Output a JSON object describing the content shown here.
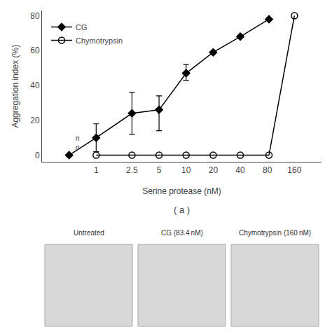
{
  "chart_data": {
    "type": "line",
    "xlabel": "Serine protease (nM)",
    "ylabel": "Aggregation index (%)",
    "subtitle": "( a )",
    "image_labels": [
      "Untreated",
      "CG (83.4 nM)",
      "Chymotrypsin (160 nM)"
    ],
    "image_color": "#d8d8d8",
    "image_border": "#aaaaaa",
    "log": "x",
    "xlim": [
      0.25,
      320
    ],
    "xticks": [
      1,
      2.5,
      5,
      10,
      20,
      40,
      80,
      160
    ],
    "ylim": [
      -4,
      83
    ],
    "yticks": [
      0,
      20,
      40,
      60,
      80
    ],
    "grid": false,
    "legend": "upper left",
    "series": [
      {
        "name": "CG",
        "color": "#000000",
        "marker": "diamond",
        "line_style": "solid",
        "x": [
          0.5,
          1,
          2.5,
          5,
          10,
          20,
          40,
          83.4
        ],
        "values": [
          0,
          10,
          24,
          26,
          47,
          59,
          68,
          78
        ],
        "error_low": [
          0,
          8,
          12,
          12,
          4,
          0,
          0,
          0
        ],
        "error_high": [
          0,
          8,
          12,
          8,
          5,
          0,
          0,
          0
        ]
      },
      {
        "name": "Chymotrypsin",
        "color": "#000000",
        "marker": "open circle",
        "line_style": "solid",
        "x": [
          1,
          2.5,
          5,
          10,
          20,
          40,
          83.4,
          160
        ],
        "values": [
          0,
          0,
          0,
          0,
          0,
          0,
          0,
          80
        ]
      }
    ],
    "annotations": [
      {
        "text": "n\nn",
        "x": 0.62,
        "y": 1.5
      }
    ]
  }
}
